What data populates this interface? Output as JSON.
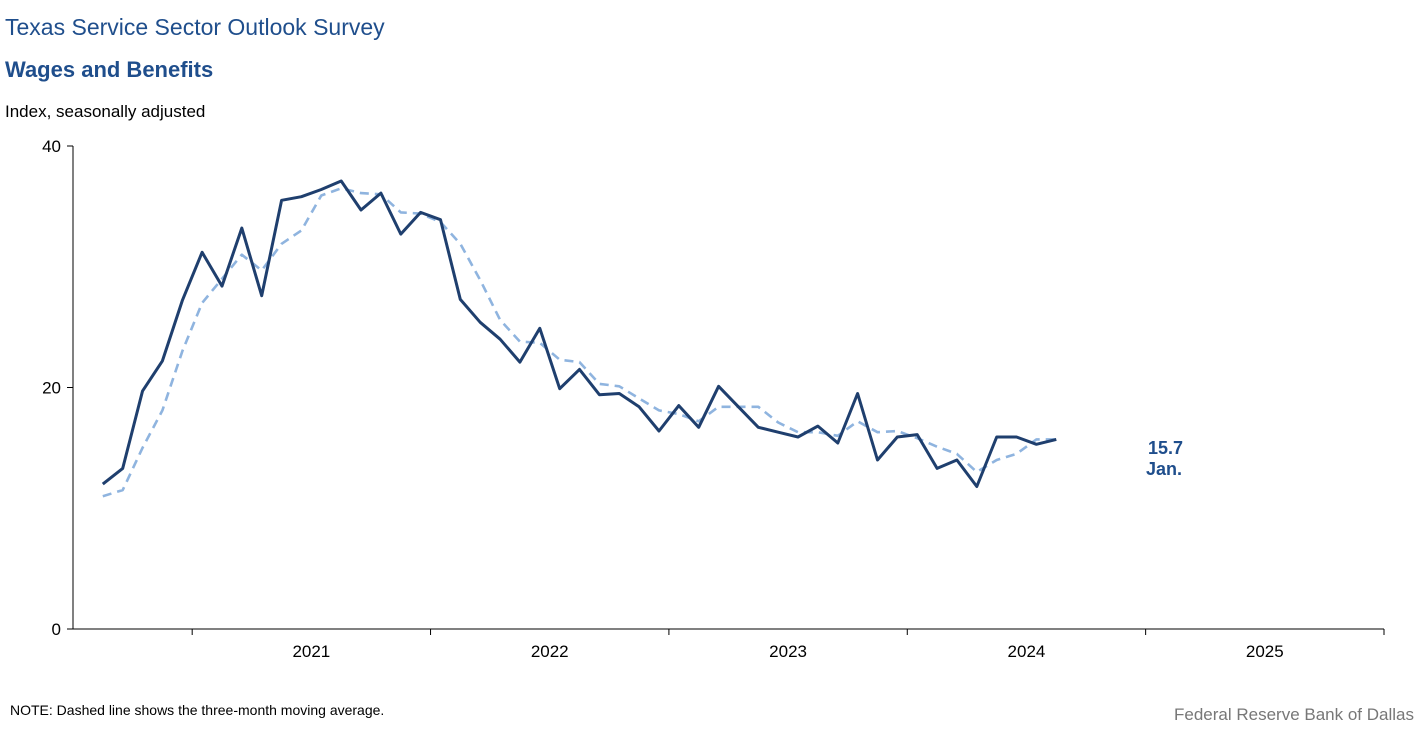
{
  "header": {
    "title": "Texas Service Sector Outlook Survey",
    "subtitle": "Wages and Benefits",
    "ylabel": "Index, seasonally adjusted"
  },
  "footer": {
    "note": "NOTE: Dashed line shows the three-month  moving average.",
    "source": "Federal Reserve Bank of Dallas"
  },
  "colors": {
    "series_main": "#1f3f6e",
    "series_ma": "#8fb4df",
    "text_accent": "#1f4e8c"
  },
  "chart_data": {
    "type": "line",
    "title": "Wages and Benefits",
    "ylabel": "Index, seasonally adjusted",
    "ylim": [
      0,
      40
    ],
    "yticks": [
      0,
      20,
      40
    ],
    "xticks": [
      "2021",
      "2022",
      "2023",
      "2024",
      "2025"
    ],
    "x_start": "2020-07",
    "x_end": "2025-12",
    "grid": false,
    "series": [
      {
        "name": "",
        "style": "solid",
        "x": [
          "2020-08",
          "2020-09",
          "2020-10",
          "2020-11",
          "2020-12",
          "2021-01",
          "2021-02",
          "2021-03",
          "2021-04",
          "2021-05",
          "2021-06",
          "2021-07",
          "2021-08",
          "2021-09",
          "2021-10",
          "2021-11",
          "2021-12",
          "2022-01",
          "2022-02",
          "2022-03",
          "2022-04",
          "2022-05",
          "2022-06",
          "2022-07",
          "2022-08",
          "2022-09",
          "2022-10",
          "2022-11",
          "2022-12",
          "2023-01",
          "2023-02",
          "2023-03",
          "2023-04",
          "2023-05",
          "2023-06",
          "2023-07",
          "2023-08",
          "2023-09",
          "2023-10",
          "2023-11",
          "2023-12",
          "2024-01",
          "2024-02",
          "2024-03",
          "2024-04",
          "2024-05",
          "2024-06",
          "2024-07",
          "2024-08",
          "2024-09",
          "2024-10",
          "2024-11",
          "2024-12",
          "2025-01"
        ],
        "values": [
          12.0,
          13.3,
          19.7,
          22.2,
          27.2,
          31.2,
          28.4,
          33.2,
          27.6,
          35.5,
          35.8,
          36.4,
          37.1,
          34.7,
          36.1,
          32.7,
          34.5,
          33.9,
          27.3,
          25.4,
          24.0,
          22.1,
          24.9,
          19.9,
          21.5,
          19.4,
          19.5,
          18.4,
          16.4,
          18.5,
          16.7,
          20.1,
          18.4,
          16.7,
          16.3,
          15.9,
          16.8,
          15.4,
          19.5,
          14.0,
          15.9,
          16.1,
          13.3,
          14.0,
          11.8,
          15.9,
          15.9,
          15.3,
          15.7,
          null,
          null,
          null,
          null,
          null
        ]
      },
      {
        "name": "",
        "style": "dashed",
        "x": [
          "2020-08",
          "2020-09",
          "2020-10",
          "2020-11",
          "2020-12",
          "2021-01",
          "2021-02",
          "2021-03",
          "2021-04",
          "2021-05",
          "2021-06",
          "2021-07",
          "2021-08",
          "2021-09",
          "2021-10",
          "2021-11",
          "2021-12",
          "2022-01",
          "2022-02",
          "2022-03",
          "2022-04",
          "2022-05",
          "2022-06",
          "2022-07",
          "2022-08",
          "2022-09",
          "2022-10",
          "2022-11",
          "2022-12",
          "2023-01",
          "2023-02",
          "2023-03",
          "2023-04",
          "2023-05",
          "2023-06",
          "2023-07",
          "2023-08",
          "2023-09",
          "2023-10",
          "2023-11",
          "2023-12",
          "2024-01",
          "2024-02",
          "2024-03",
          "2024-04",
          "2024-05",
          "2024-06",
          "2024-07",
          "2024-08"
        ],
        "values": [
          11.0,
          11.5,
          15.0,
          18.1,
          23.0,
          27.0,
          29.0,
          31.0,
          29.7,
          31.9,
          33.0,
          35.9,
          36.5,
          36.1,
          36.0,
          34.5,
          34.4,
          33.7,
          31.9,
          28.9,
          25.6,
          23.8,
          23.7,
          22.3,
          22.1,
          20.3,
          20.1,
          19.1,
          18.1,
          17.8,
          17.2,
          18.4,
          18.4,
          18.4,
          17.1,
          16.3,
          16.3,
          16.0,
          17.2,
          16.3,
          16.4,
          15.8,
          15.1,
          14.5,
          13.0,
          14.0,
          14.5,
          15.7,
          15.7
        ]
      }
    ],
    "annotation": {
      "value_label": "15.7",
      "month_label": "Jan."
    }
  }
}
